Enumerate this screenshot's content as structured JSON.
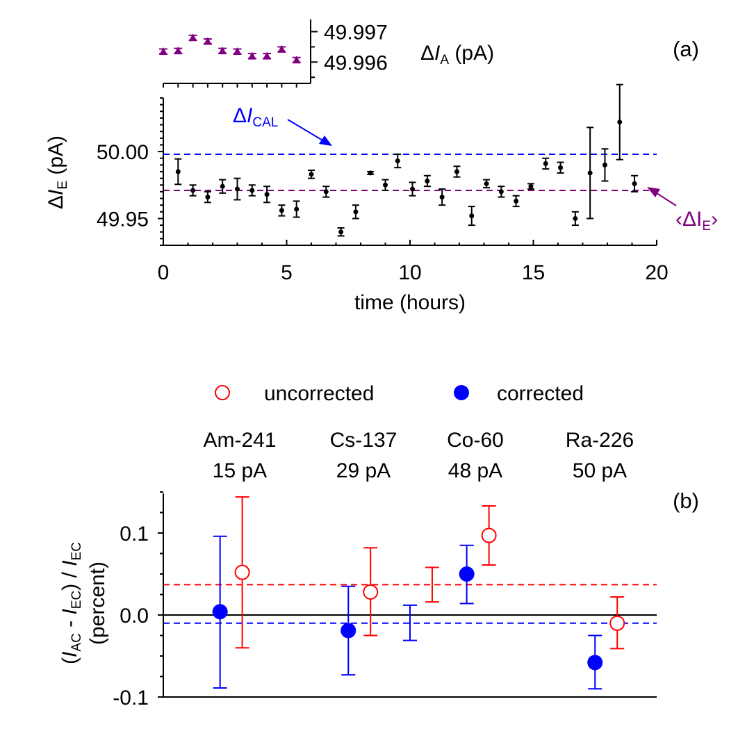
{
  "chart_data": [
    {
      "panel": "(a)",
      "type": "scatter",
      "xlabel": "time (hours)",
      "ylabel": {
        "prefix": "Δ",
        "var": "I",
        "sub": "E",
        "suffix": " (pA)"
      },
      "xlim": [
        0,
        20
      ],
      "ylim": [
        49.93,
        50.04
      ],
      "xticks": [
        0,
        5,
        10,
        15,
        20
      ],
      "yticks": [
        49.95,
        50.0
      ],
      "ytick_labels": [
        "49.95",
        "50.00"
      ],
      "series": [
        {
          "name": "ΔI_E",
          "color": "#000000",
          "x": [
            0.6,
            1.2,
            1.8,
            2.4,
            3.0,
            3.6,
            4.2,
            4.8,
            5.4,
            6.0,
            6.6,
            7.2,
            7.8,
            8.4,
            9.0,
            9.5,
            10.1,
            10.7,
            11.3,
            11.9,
            12.5,
            13.1,
            13.7,
            14.3,
            14.9,
            15.5,
            16.1,
            16.7,
            17.3,
            17.9,
            18.5,
            19.1
          ],
          "y": [
            49.985,
            49.971,
            49.966,
            49.974,
            49.972,
            49.971,
            49.968,
            49.956,
            49.957,
            49.983,
            49.97,
            49.94,
            49.955,
            49.984,
            49.975,
            49.993,
            49.972,
            49.978,
            49.966,
            49.985,
            49.952,
            49.976,
            49.97,
            49.963,
            49.974,
            49.991,
            49.988,
            49.95,
            49.984,
            49.99,
            50.022,
            49.976
          ],
          "err": [
            0.0095,
            0.004,
            0.004,
            0.005,
            0.008,
            0.004,
            0.006,
            0.004,
            0.006,
            0.003,
            0.004,
            0.003,
            0.005,
            0.001,
            0.004,
            0.005,
            0.005,
            0.004,
            0.006,
            0.004,
            0.007,
            0.003,
            0.004,
            0.004,
            0.002,
            0.004,
            0.004,
            0.005,
            0.034,
            0.012,
            0.028,
            0.006
          ]
        }
      ],
      "reference_lines": [
        {
          "name": "ΔI_CAL",
          "y": 49.998,
          "color": "#0000ff",
          "style": "dashed"
        },
        {
          "name": "⟨ΔI_E⟩",
          "y": 49.971,
          "color": "#800080",
          "style": "dashed"
        }
      ],
      "annotations": [
        {
          "prefix": "Δ",
          "var": "I",
          "sub": "CAL",
          "color": "#0000ff"
        },
        {
          "open": "‹ΔI",
          "sub": "E",
          "close": "›",
          "color": "#800080"
        }
      ]
    },
    {
      "panel": "inset",
      "type": "scatter",
      "ylabel": {
        "prefix": "Δ",
        "var": "I",
        "sub": "A",
        "suffix": " (pA)"
      },
      "ylim": [
        49.9953,
        49.9974
      ],
      "yticks": [
        49.997,
        49.996
      ],
      "ytick_labels": [
        "49.997",
        "49.996"
      ],
      "series": [
        {
          "name": "ΔI_A",
          "color": "#800080",
          "marker": "triangle",
          "x": [
            0,
            1,
            2,
            3,
            4,
            5,
            6,
            7,
            8,
            9
          ],
          "y": [
            49.99635,
            49.99637,
            49.9968,
            49.99668,
            49.99637,
            49.99635,
            49.9962,
            49.9962,
            49.99642,
            49.99607
          ],
          "err": [
            8e-05,
            8e-05,
            8e-05,
            8e-05,
            8e-05,
            8e-05,
            8e-05,
            8e-05,
            8e-05,
            8e-05
          ]
        }
      ]
    },
    {
      "panel": "(b)",
      "type": "scatter",
      "ylabel_line1": {
        "open": "(",
        "var1": "I",
        "sub1": "AC",
        "mid": " - ",
        "var2": "I",
        "sub2": "EC",
        "close": ") / ",
        "var3": "I",
        "sub3": "EC"
      },
      "ylabel_line2": "(percent)",
      "ylim": [
        -0.1,
        0.1
      ],
      "yticks": [
        0.1,
        0.0,
        -0.1
      ],
      "ytick_labels": [
        "0.1",
        "0.0",
        "-0.1"
      ],
      "legend": [
        {
          "label": "uncorrected",
          "color": "#ff0000",
          "fill": "none"
        },
        {
          "label": "corrected",
          "color": "#0000ff",
          "fill": "solid"
        }
      ],
      "sources": [
        {
          "name": "Am-241",
          "current": "15 pA"
        },
        {
          "name": "Cs-137",
          "current": "29 pA"
        },
        {
          "name": "Co-60",
          "current": "48 pA"
        },
        {
          "name": "Ra-226",
          "current": "50 pA"
        }
      ],
      "series": [
        {
          "name": "uncorrected",
          "color": "#ff0000",
          "marker": "open-circle",
          "x": [
            3.2,
            8.4,
            13.2,
            18.4
          ],
          "y": [
            0.052,
            0.028,
            0.097,
            -0.01
          ],
          "ylo": [
            -0.04,
            -0.025,
            0.061,
            -0.041
          ],
          "yhi": [
            0.144,
            0.082,
            0.133,
            0.022
          ]
        },
        {
          "name": "corrected",
          "color": "#0000ff",
          "marker": "filled-circle",
          "x": [
            2.3,
            7.5,
            12.3,
            17.5
          ],
          "y": [
            0.004,
            -0.019,
            0.05,
            -0.058
          ],
          "ylo": [
            -0.089,
            -0.073,
            0.014,
            -0.09
          ],
          "yhi": [
            0.096,
            0.035,
            0.085,
            -0.025
          ]
        },
        {
          "name": "uncorrected mean",
          "color": "#ff0000",
          "marker": "none",
          "x": [
            10.9
          ],
          "y": [
            0.037
          ],
          "ylo": [
            0.016
          ],
          "yhi": [
            0.058
          ]
        },
        {
          "name": "corrected mean",
          "color": "#0000ff",
          "marker": "none",
          "x": [
            10.0
          ],
          "y": [
            -0.01
          ],
          "ylo": [
            -0.031
          ],
          "yhi": [
            0.012
          ]
        }
      ],
      "reference_lines": [
        {
          "name": "zero",
          "y": 0.0,
          "color": "#000000",
          "style": "solid"
        },
        {
          "name": "uncorrected mean",
          "y": 0.037,
          "color": "#ff0000",
          "style": "dashed"
        },
        {
          "name": "corrected mean",
          "y": -0.01,
          "color": "#0000ff",
          "style": "dashed"
        }
      ]
    }
  ]
}
